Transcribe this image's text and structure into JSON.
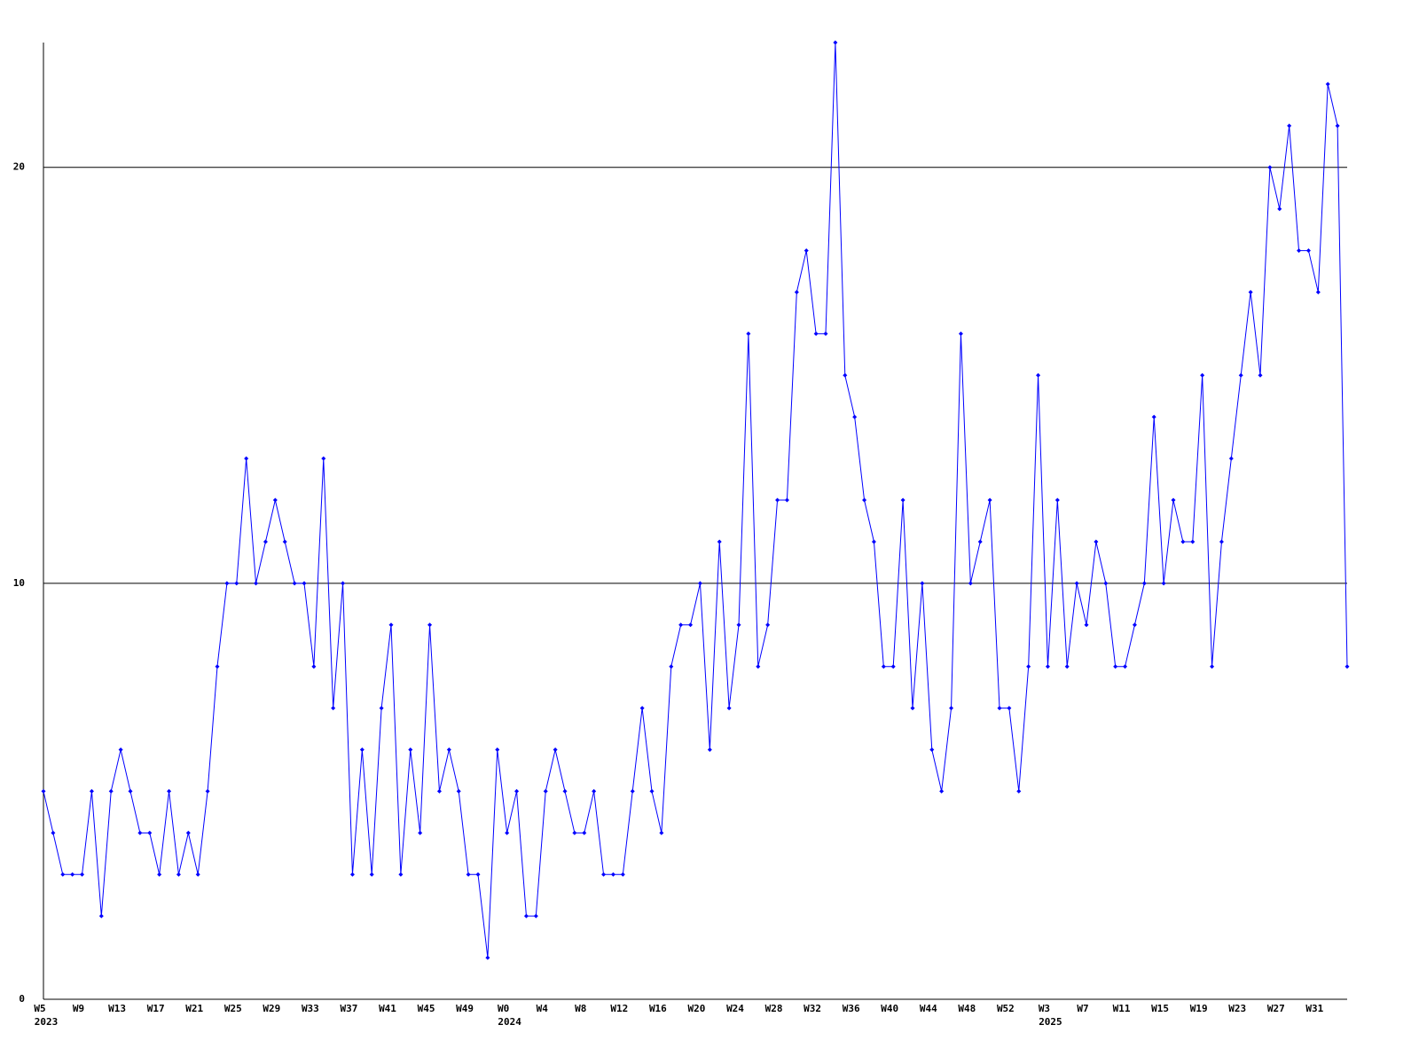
{
  "chart_data": {
    "type": "line",
    "categories": [
      "W5",
      null,
      null,
      null,
      "W9",
      null,
      null,
      null,
      "W13",
      null,
      null,
      null,
      "W17",
      null,
      null,
      null,
      "W21",
      null,
      null,
      null,
      "W25",
      null,
      null,
      null,
      "W29",
      null,
      null,
      null,
      "W33",
      null,
      null,
      null,
      "W37",
      null,
      null,
      null,
      "W41",
      null,
      null,
      null,
      "W45",
      null,
      null,
      null,
      "W49",
      null,
      null,
      null,
      "W0",
      null,
      null,
      null,
      "W4",
      null,
      null,
      null,
      "W8",
      null,
      null,
      null,
      "W12",
      null,
      null,
      null,
      "W16",
      null,
      null,
      null,
      "W20",
      null,
      null,
      null,
      "W24",
      null,
      null,
      null,
      "W28",
      null,
      null,
      null,
      "W32",
      null,
      null,
      null,
      "W36",
      null,
      null,
      null,
      "W40",
      null,
      null,
      null,
      "W44",
      null,
      null,
      null,
      "W48",
      null,
      null,
      null,
      "W52",
      null,
      null,
      null,
      "W3",
      null,
      null,
      null,
      "W7",
      null,
      null,
      null,
      "W11",
      null,
      null,
      null,
      "W15",
      null,
      null,
      null,
      "W19",
      null,
      null,
      null,
      "W23",
      null,
      null,
      null,
      "W27",
      null,
      null,
      null,
      "W31",
      null,
      null,
      null
    ],
    "year_labels": [
      "2023",
      null,
      null,
      null,
      null,
      null,
      null,
      null,
      null,
      null,
      null,
      null,
      null,
      null,
      null,
      null,
      null,
      null,
      null,
      null,
      null,
      null,
      null,
      null,
      null,
      null,
      null,
      null,
      null,
      null,
      null,
      null,
      null,
      null,
      null,
      null,
      null,
      null,
      null,
      null,
      null,
      null,
      null,
      null,
      null,
      null,
      null,
      null,
      "2024",
      null,
      null,
      null,
      null,
      null,
      null,
      null,
      null,
      null,
      null,
      null,
      null,
      null,
      null,
      null,
      null,
      null,
      null,
      null,
      null,
      null,
      null,
      null,
      null,
      null,
      null,
      null,
      null,
      null,
      null,
      null,
      null,
      null,
      null,
      null,
      null,
      null,
      null,
      null,
      null,
      null,
      null,
      null,
      null,
      null,
      null,
      null,
      null,
      null,
      null,
      null,
      null,
      null,
      null,
      null,
      "2025",
      null,
      null,
      null,
      null,
      null,
      null,
      null,
      null,
      null,
      null,
      null,
      null,
      null,
      null,
      null,
      null,
      null,
      null,
      null,
      null,
      null,
      null,
      null,
      null,
      null,
      null,
      null,
      null,
      null,
      null,
      null
    ],
    "series": [
      {
        "color": "#0000ff",
        "values": [
          5,
          4,
          3,
          3,
          3,
          5,
          2,
          5,
          6,
          5,
          4,
          4,
          3,
          5,
          3,
          4,
          3,
          5,
          8,
          10,
          10,
          13,
          10,
          11,
          12,
          11,
          10,
          10,
          8,
          13,
          7,
          10,
          3,
          6,
          3,
          7,
          9,
          3,
          6,
          4,
          9,
          5,
          6,
          5,
          3,
          3,
          1,
          6,
          4,
          5,
          2,
          2,
          5,
          6,
          5,
          4,
          4,
          5,
          3,
          3,
          3,
          5,
          7,
          5,
          4,
          8,
          9,
          9,
          10,
          6,
          11,
          7,
          9,
          16,
          8,
          9,
          12,
          12,
          17,
          18,
          16,
          16,
          23,
          15,
          14,
          12,
          11,
          8,
          8,
          12,
          7,
          10,
          6,
          5,
          7,
          16,
          10,
          11,
          12,
          7,
          7,
          5,
          8,
          15,
          8,
          12,
          8,
          10,
          9,
          11,
          10,
          8,
          8,
          9,
          10,
          14,
          10,
          12,
          11,
          11,
          15,
          8,
          11,
          13,
          15,
          17,
          15,
          20,
          19,
          21,
          18,
          18,
          17,
          22,
          21,
          8
        ]
      }
    ],
    "ylim": [
      0,
      23
    ],
    "yticks": [
      0,
      10,
      20
    ],
    "grid": true
  }
}
